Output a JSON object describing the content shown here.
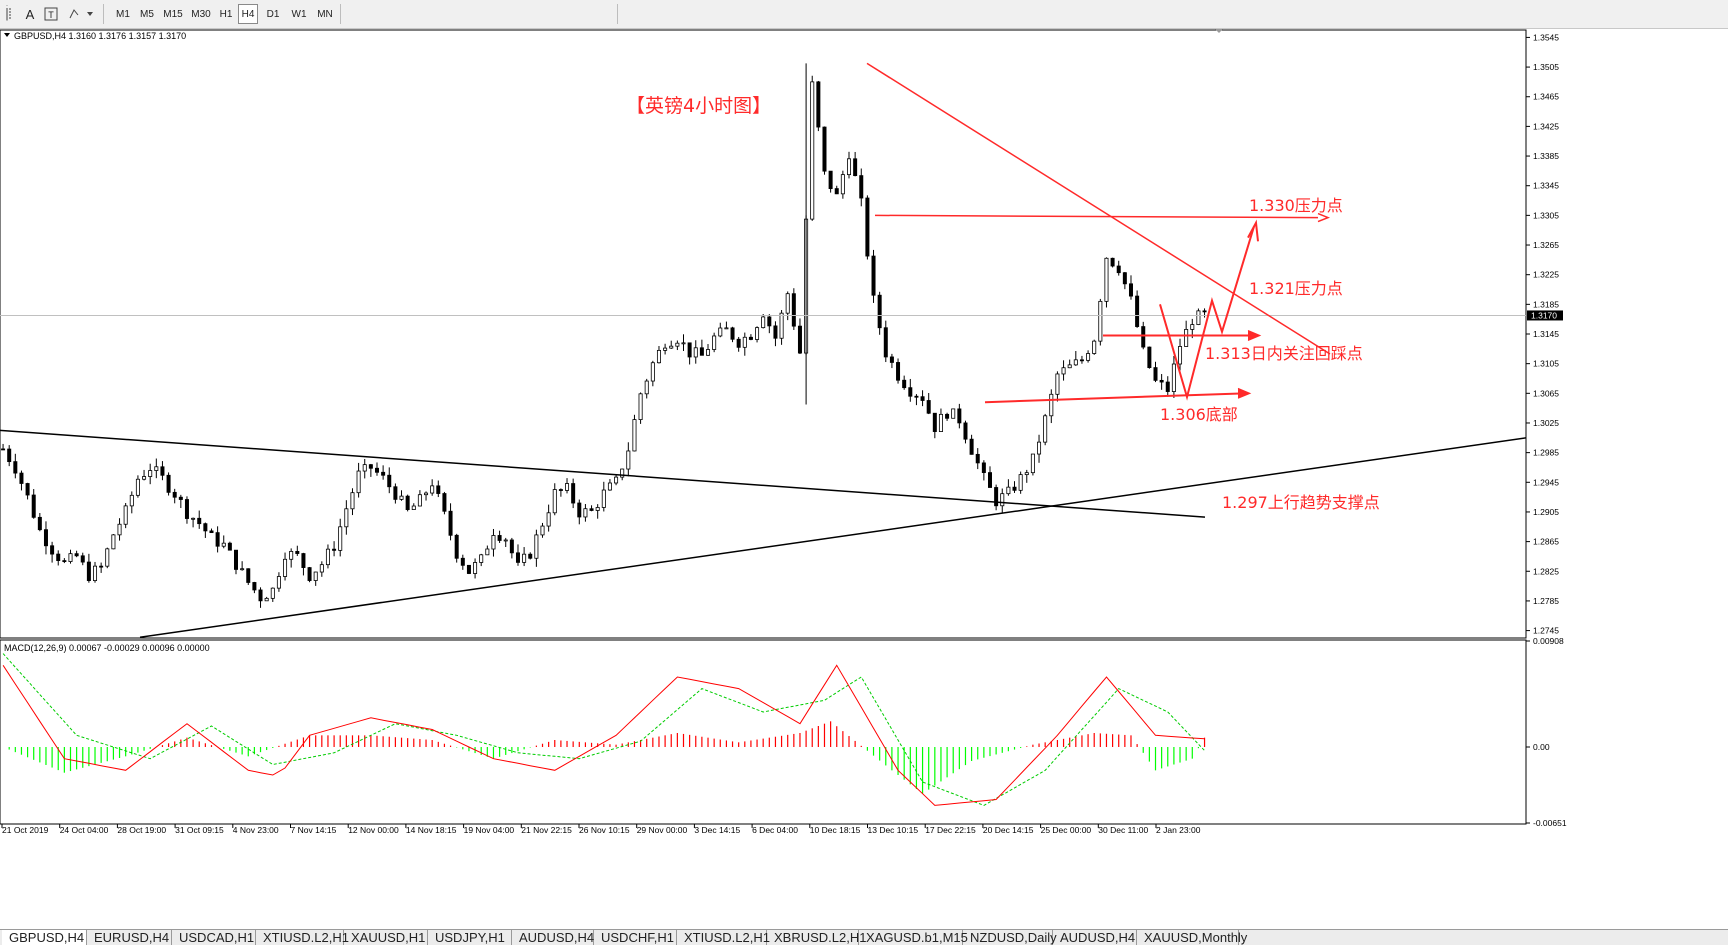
{
  "toolbar": {
    "tool_icons": [
      "line-tool-icon",
      "crosshair-icon",
      "vertical-line-icon",
      "text-tool-icon",
      "text-label-icon",
      "shapes-icon"
    ],
    "text_tool_label": "A",
    "timeframes": [
      "M1",
      "M5",
      "M15",
      "M30",
      "H1",
      "H4",
      "D1",
      "W1",
      "MN"
    ],
    "active_timeframe": "H4"
  },
  "chart": {
    "info_line": "GBPUSD,H4  1.3160 1.3176 1.3157 1.3170",
    "title_annotation": "【英镑4小时图】",
    "annotations": {
      "resistance_1330": "1.330压力点",
      "resistance_1321": "1.321压力点",
      "pullback_1313": "1.313日内关注回踩点",
      "bottom_1306": "1.306底部",
      "support_1297": "1.297上行趋势支撑点"
    },
    "current_price": "1.3170",
    "price_ticks": [
      "1.3545",
      "1.3505",
      "1.3465",
      "1.3425",
      "1.3385",
      "1.3345",
      "1.3305",
      "1.3265",
      "1.3225",
      "1.3185",
      "1.3145",
      "1.3105",
      "1.3065",
      "1.3025",
      "1.2985",
      "1.2945",
      "1.2905",
      "1.2865",
      "1.2825",
      "1.2785",
      "1.2745"
    ],
    "time_ticks": [
      "21 Oct 2019",
      "24 Oct 04:00",
      "28 Oct 19:00",
      "31 Oct 09:15",
      "4 Nov 23:00",
      "7 Nov 14:15",
      "12 Nov 00:00",
      "14 Nov 18:15",
      "19 Nov 04:00",
      "21 Nov 22:15",
      "26 Nov 10:15",
      "29 Nov 00:00",
      "3 Dec 14:15",
      "6 Dec 04:00",
      "10 Dec 18:15",
      "13 Dec 10:15",
      "17 Dec 22:15",
      "20 Dec 14:15",
      "25 Dec 00:00",
      "30 Dec 11:00",
      "2 Jan 23:00"
    ],
    "colors": {
      "bull": "#000000",
      "bear": "#000000",
      "annotation": "#ff2a2a",
      "trendline": "#000000",
      "macd_hist_pos": "#ff0000",
      "macd_hist_neg": "#00ff00",
      "macd_signal": "#00cc00",
      "macd_main": "#ff0000"
    }
  },
  "macd": {
    "info_line": "MACD(12,26,9) 0.00067 -0.00029 0.00096 0.00000",
    "ticks": [
      "0.00908",
      "0.00",
      "-0.00651"
    ]
  },
  "tabs": [
    "GBPUSD,H4",
    "EURUSD,H4",
    "USDCAD,H1",
    "XTIUSD.L2,H1",
    "XAUUSD,H1",
    "USDJPY,H1",
    "AUDUSD,H4",
    "USDCHF,H1",
    "XTIUSD.L2,H1",
    "XBRUSD.L2,H1",
    "XAGUSD.b1,M15",
    "NZDUSD,Daily",
    "AUDUSD,H4",
    "XAUUSD,Monthly"
  ],
  "active_tab": "GBPUSD,H4",
  "chart_data": {
    "type": "candlestick",
    "symbol": "GBPUSD",
    "timeframe": "H4",
    "last": {
      "open": 1.316,
      "high": 1.3176,
      "low": 1.3157,
      "close": 1.317
    },
    "ylim": [
      1.2735,
      1.3555
    ],
    "close_path": [
      [
        0,
        1.299
      ],
      [
        2,
        1.2965
      ],
      [
        4,
        1.2925
      ],
      [
        6,
        1.288
      ],
      [
        8,
        1.2855
      ],
      [
        10,
        1.2835
      ],
      [
        12,
        1.2845
      ],
      [
        14,
        1.282
      ],
      [
        16,
        1.283
      ],
      [
        18,
        1.2875
      ],
      [
        20,
        1.2905
      ],
      [
        22,
        1.295
      ],
      [
        24,
        1.2965
      ],
      [
        26,
        1.295
      ],
      [
        28,
        1.293
      ],
      [
        30,
        1.2905
      ],
      [
        32,
        1.289
      ],
      [
        34,
        1.287
      ],
      [
        36,
        1.286
      ],
      [
        38,
        1.2835
      ],
      [
        40,
        1.281
      ],
      [
        42,
        1.279
      ],
      [
        44,
        1.28
      ],
      [
        46,
        1.285
      ],
      [
        48,
        1.2845
      ],
      [
        50,
        1.282
      ],
      [
        52,
        1.2835
      ],
      [
        54,
        1.286
      ],
      [
        56,
        1.291
      ],
      [
        58,
        1.2955
      ],
      [
        60,
        1.2965
      ],
      [
        62,
        1.295
      ],
      [
        64,
        1.293
      ],
      [
        66,
        1.2905
      ],
      [
        68,
        1.292
      ],
      [
        70,
        1.2945
      ],
      [
        72,
        1.29
      ],
      [
        74,
        1.285
      ],
      [
        76,
        1.2825
      ],
      [
        78,
        1.284
      ],
      [
        80,
        1.288
      ],
      [
        82,
        1.287
      ],
      [
        84,
        1.283
      ],
      [
        86,
        1.285
      ],
      [
        88,
        1.289
      ],
      [
        90,
        1.293
      ],
      [
        92,
        1.2935
      ],
      [
        94,
        1.2905
      ],
      [
        96,
        1.2905
      ],
      [
        98,
        1.293
      ],
      [
        100,
        1.2945
      ],
      [
        102,
        1.299
      ],
      [
        104,
        1.3065
      ],
      [
        106,
        1.3105
      ],
      [
        108,
        1.3135
      ],
      [
        110,
        1.314
      ],
      [
        112,
        1.312
      ],
      [
        114,
        1.3115
      ],
      [
        116,
        1.314
      ],
      [
        118,
        1.315
      ],
      [
        120,
        1.3135
      ],
      [
        122,
        1.3145
      ],
      [
        124,
        1.3175
      ],
      [
        126,
        1.314
      ],
      [
        128,
        1.32
      ],
      [
        130,
        1.312
      ],
      [
        132,
        1.348
      ],
      [
        134,
        1.336
      ],
      [
        136,
        1.333
      ],
      [
        138,
        1.339
      ],
      [
        140,
        1.332
      ],
      [
        142,
        1.319
      ],
      [
        144,
        1.312
      ],
      [
        146,
        1.309
      ],
      [
        148,
        1.307
      ],
      [
        150,
        1.306
      ],
      [
        152,
        1.302
      ],
      [
        154,
        1.304
      ],
      [
        156,
        1.303
      ],
      [
        158,
        1.299
      ],
      [
        160,
        1.295
      ],
      [
        162,
        1.292
      ],
      [
        164,
        1.293
      ],
      [
        166,
        1.295
      ],
      [
        168,
        1.2975
      ],
      [
        170,
        1.303
      ],
      [
        172,
        1.309
      ],
      [
        174,
        1.31
      ],
      [
        176,
        1.311
      ],
      [
        178,
        1.314
      ],
      [
        180,
        1.325
      ],
      [
        182,
        1.3235
      ],
      [
        184,
        1.319
      ],
      [
        186,
        1.312
      ],
      [
        188,
        1.308
      ],
      [
        190,
        1.307
      ],
      [
        192,
        1.313
      ],
      [
        194,
        1.3165
      ],
      [
        196,
        1.317
      ]
    ],
    "macd": {
      "histogram_path": [
        [
          0,
          0.0
        ],
        [
          10,
          -0.0022
        ],
        [
          20,
          -0.0008
        ],
        [
          30,
          0.0008
        ],
        [
          40,
          -0.0008
        ],
        [
          50,
          0.001
        ],
        [
          60,
          0.001
        ],
        [
          70,
          0.0006
        ],
        [
          80,
          -0.001
        ],
        [
          90,
          0.0006
        ],
        [
          100,
          0.0002
        ],
        [
          110,
          0.0012
        ],
        [
          120,
          0.0004
        ],
        [
          130,
          0.0012
        ],
        [
          135,
          0.0022
        ],
        [
          145,
          -0.002
        ],
        [
          150,
          -0.004
        ],
        [
          158,
          -0.0012
        ],
        [
          168,
          0.0002
        ],
        [
          178,
          0.0012
        ],
        [
          184,
          0.001
        ],
        [
          188,
          -0.002
        ],
        [
          194,
          -0.001
        ],
        [
          196,
          0.0008
        ]
      ],
      "main_path": [
        [
          0,
          0.007
        ],
        [
          10,
          -0.001
        ],
        [
          20,
          -0.002
        ],
        [
          30,
          0.002
        ],
        [
          40,
          -0.002
        ],
        [
          45,
          -0.0025
        ],
        [
          50,
          0.001
        ],
        [
          60,
          0.0025
        ],
        [
          70,
          0.0015
        ],
        [
          80,
          -0.001
        ],
        [
          90,
          -0.002
        ],
        [
          100,
          0.001
        ],
        [
          110,
          0.006
        ],
        [
          120,
          0.005
        ],
        [
          130,
          0.002
        ],
        [
          136,
          0.007
        ],
        [
          146,
          -0.002
        ],
        [
          152,
          -0.005
        ],
        [
          162,
          -0.0045
        ],
        [
          172,
          0.001
        ],
        [
          180,
          0.006
        ],
        [
          188,
          0.001
        ],
        [
          196,
          0.0007
        ]
      ],
      "signal_path": [
        [
          0,
          0.008
        ],
        [
          12,
          0.001
        ],
        [
          24,
          -0.001
        ],
        [
          34,
          0.0018
        ],
        [
          44,
          -0.0015
        ],
        [
          54,
          -0.0005
        ],
        [
          64,
          0.002
        ],
        [
          74,
          0.001
        ],
        [
          84,
          -0.0005
        ],
        [
          94,
          -0.001
        ],
        [
          104,
          0.0005
        ],
        [
          114,
          0.005
        ],
        [
          124,
          0.003
        ],
        [
          134,
          0.004
        ],
        [
          140,
          0.006
        ],
        [
          150,
          -0.003
        ],
        [
          160,
          -0.005
        ],
        [
          170,
          -0.002
        ],
        [
          182,
          0.005
        ],
        [
          190,
          0.003
        ],
        [
          196,
          -0.0003
        ]
      ],
      "ylim": [
        -0.00651,
        0.00908
      ]
    },
    "trendlines": [
      {
        "name": "descending-black",
        "from": [
          0,
          1.3015
        ],
        "to": [
          210,
          1.29
        ]
      },
      {
        "name": "ascending-black",
        "from": [
          20,
          1.2735
        ],
        "to": [
          230,
          1.3005
        ]
      },
      {
        "name": "descending-red",
        "from": [
          132,
          1.351
        ],
        "to": [
          200,
          1.312
        ]
      }
    ]
  }
}
